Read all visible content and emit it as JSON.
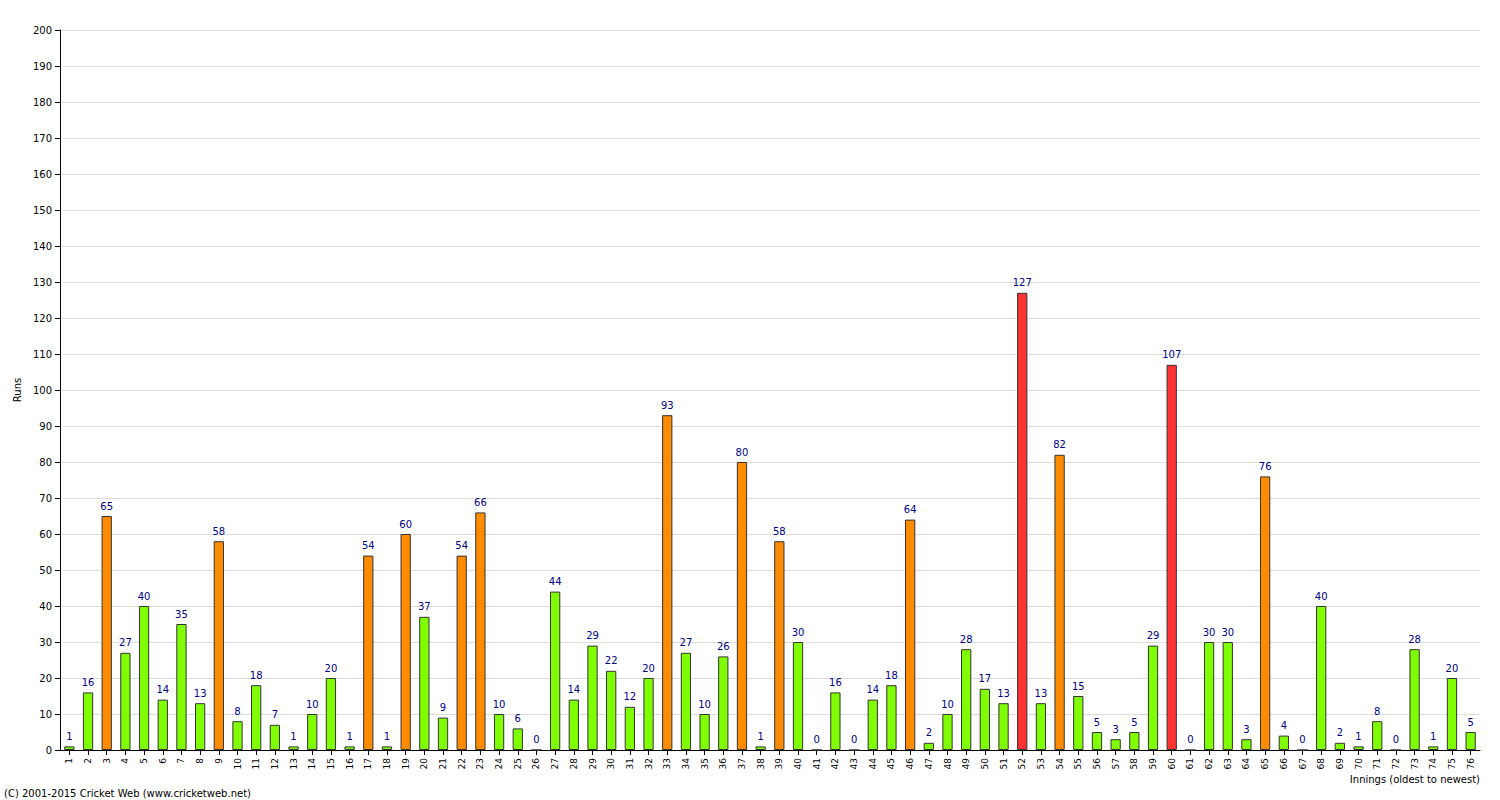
{
  "chart_data": {
    "type": "bar",
    "x_label": "Innings (oldest to newest)",
    "y_label": "Runs",
    "annotations": [
      "(C) 2001-2015 Cricket Web (www.cricketweb.net)"
    ],
    "categories": [
      "1",
      "2",
      "3",
      "4",
      "5",
      "6",
      "7",
      "8",
      "9",
      "10",
      "11",
      "12",
      "13",
      "14",
      "15",
      "16",
      "17",
      "18",
      "19",
      "20",
      "21",
      "22",
      "23",
      "24",
      "25",
      "26",
      "27",
      "28",
      "29",
      "30",
      "31",
      "32",
      "33",
      "34",
      "35",
      "36",
      "37",
      "38",
      "39",
      "40",
      "41",
      "42",
      "43",
      "44",
      "45",
      "46",
      "47",
      "48",
      "49",
      "50",
      "51",
      "52",
      "53",
      "54",
      "55",
      "56",
      "57",
      "58",
      "59",
      "60",
      "61",
      "62",
      "63",
      "64",
      "65",
      "66",
      "67",
      "68",
      "69",
      "70",
      "71",
      "72",
      "73",
      "74",
      "75",
      "76"
    ],
    "values": [
      1,
      16,
      65,
      27,
      40,
      14,
      35,
      13,
      58,
      8,
      18,
      7,
      1,
      10,
      20,
      1,
      54,
      1,
      60,
      37,
      9,
      54,
      66,
      10,
      6,
      0,
      44,
      14,
      29,
      22,
      12,
      20,
      93,
      27,
      10,
      26,
      80,
      1,
      58,
      30,
      0,
      16,
      0,
      14,
      18,
      64,
      2,
      10,
      28,
      17,
      13,
      127,
      13,
      82,
      15,
      5,
      3,
      5,
      29,
      107,
      0,
      30,
      30,
      3,
      76,
      4,
      0,
      40,
      2,
      1,
      8,
      0,
      28,
      1,
      20,
      5
    ],
    "colors": [
      "#80ff00",
      "#80ff00",
      "#ff8c00",
      "#80ff00",
      "#80ff00",
      "#80ff00",
      "#80ff00",
      "#80ff00",
      "#ff8c00",
      "#80ff00",
      "#80ff00",
      "#80ff00",
      "#80ff00",
      "#80ff00",
      "#80ff00",
      "#80ff00",
      "#ff8c00",
      "#80ff00",
      "#ff8c00",
      "#80ff00",
      "#80ff00",
      "#ff8c00",
      "#ff8c00",
      "#80ff00",
      "#80ff00",
      "#80ff00",
      "#80ff00",
      "#80ff00",
      "#80ff00",
      "#80ff00",
      "#80ff00",
      "#80ff00",
      "#ff8c00",
      "#80ff00",
      "#80ff00",
      "#80ff00",
      "#ff8c00",
      "#80ff00",
      "#ff8c00",
      "#80ff00",
      "#80ff00",
      "#80ff00",
      "#80ff00",
      "#80ff00",
      "#80ff00",
      "#ff8c00",
      "#80ff00",
      "#80ff00",
      "#80ff00",
      "#80ff00",
      "#80ff00",
      "#ff3333",
      "#80ff00",
      "#ff8c00",
      "#80ff00",
      "#80ff00",
      "#80ff00",
      "#80ff00",
      "#80ff00",
      "#ff3333",
      "#80ff00",
      "#80ff00",
      "#80ff00",
      "#80ff00",
      "#ff8c00",
      "#80ff00",
      "#80ff00",
      "#80ff00",
      "#80ff00",
      "#80ff00",
      "#80ff00",
      "#80ff00",
      "#80ff00",
      "#80ff00",
      "#80ff00",
      "#80ff00"
    ],
    "ylim": [
      0,
      200
    ],
    "yticks": [
      0,
      10,
      20,
      30,
      40,
      50,
      60,
      70,
      80,
      90,
      100,
      110,
      120,
      130,
      140,
      150,
      160,
      170,
      180,
      190,
      200
    ],
    "grid": true,
    "data_labels": true
  }
}
